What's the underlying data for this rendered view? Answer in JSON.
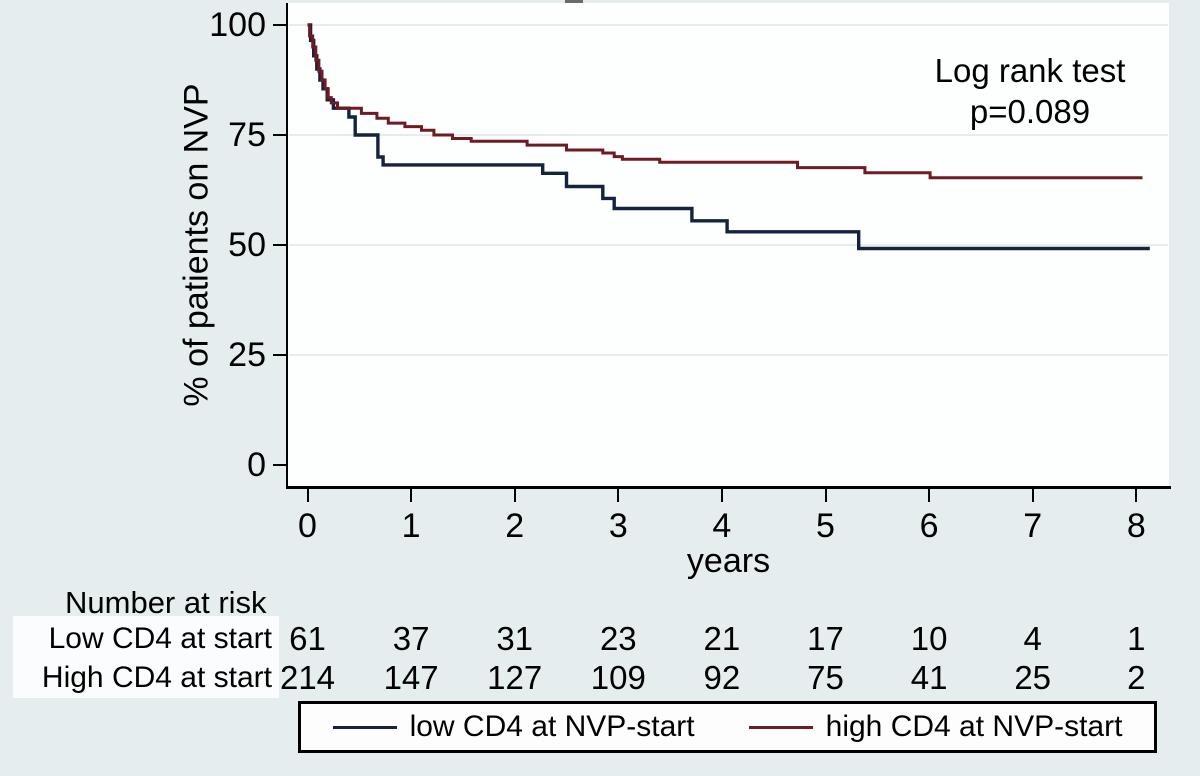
{
  "chart_data": {
    "type": "line",
    "subtype": "kaplan-meier-step",
    "title": "",
    "ylabel": "% of patients on NVP",
    "xlabel": "years",
    "ylim": [
      0,
      100
    ],
    "xlim": [
      0,
      8.2
    ],
    "yticks": [
      0,
      25,
      50,
      75,
      100
    ],
    "xticks": [
      0,
      1,
      2,
      3,
      4,
      5,
      6,
      7,
      8
    ],
    "grid": "horizontal-at-yticks-above-zero",
    "legend_position": "bottom",
    "annotation": {
      "lines": [
        "Log rank test",
        "p=0.089"
      ]
    },
    "series": [
      {
        "name": "low CD4 at NVP-start",
        "color": "#16233f",
        "end_x": 8.13,
        "points": [
          [
            0,
            100
          ],
          [
            0.03,
            96.5
          ],
          [
            0.06,
            93
          ],
          [
            0.09,
            90
          ],
          [
            0.12,
            87.5
          ],
          [
            0.15,
            85.5
          ],
          [
            0.19,
            83.0
          ],
          [
            0.25,
            81.1
          ],
          [
            0.4,
            79.1
          ],
          [
            0.46,
            75.0
          ],
          [
            0.68,
            70.0
          ],
          [
            0.73,
            68.2
          ],
          [
            2.27,
            66.3
          ],
          [
            2.5,
            63.3
          ],
          [
            2.85,
            60.6
          ],
          [
            2.96,
            58.3
          ],
          [
            3.71,
            55.5
          ],
          [
            4.05,
            53.0
          ],
          [
            5.32,
            49.2
          ]
        ]
      },
      {
        "name": "high CD4 at NVP-start",
        "color": "#701b22",
        "end_x": 8.06,
        "points": [
          [
            0,
            100
          ],
          [
            0.02,
            97.5
          ],
          [
            0.05,
            95
          ],
          [
            0.08,
            92
          ],
          [
            0.11,
            89.5
          ],
          [
            0.14,
            87.5
          ],
          [
            0.17,
            85.5
          ],
          [
            0.2,
            83.5
          ],
          [
            0.23,
            82.3
          ],
          [
            0.29,
            81.1
          ],
          [
            0.52,
            79.9
          ],
          [
            0.67,
            78.8
          ],
          [
            0.78,
            77.7
          ],
          [
            0.94,
            76.9
          ],
          [
            1.1,
            76.1
          ],
          [
            1.22,
            75.0
          ],
          [
            1.4,
            74.2
          ],
          [
            1.58,
            73.6
          ],
          [
            2.12,
            72.7
          ],
          [
            2.5,
            71.6
          ],
          [
            2.85,
            70.9
          ],
          [
            2.96,
            70.1
          ],
          [
            3.04,
            69.5
          ],
          [
            3.4,
            68.8
          ],
          [
            4.73,
            67.6
          ],
          [
            5.38,
            66.4
          ],
          [
            6.01,
            65.3
          ]
        ]
      }
    ]
  },
  "risk_table": {
    "title": "Number at risk",
    "rows": [
      {
        "label": "Low CD4 at start",
        "values": [
          "61",
          "37",
          "31",
          "23",
          "21",
          "17",
          "10",
          "4",
          "1"
        ]
      },
      {
        "label": "High CD4 at start",
        "values": [
          "214",
          "147",
          "127",
          "109",
          "92",
          "75",
          "41",
          "25",
          "2"
        ]
      }
    ]
  },
  "legend": {
    "items": [
      {
        "label": "low CD4 at NVP-start",
        "color": "#16233f"
      },
      {
        "label": "high CD4 at NVP-start",
        "color": "#701b22"
      }
    ]
  },
  "colors": {
    "background": "#e6edef",
    "plot_background": "#fdfefe",
    "gridline": "#e8ebec",
    "axis": "#000000",
    "low_cd4_line": "#16233f",
    "high_cd4_line": "#701b22"
  }
}
